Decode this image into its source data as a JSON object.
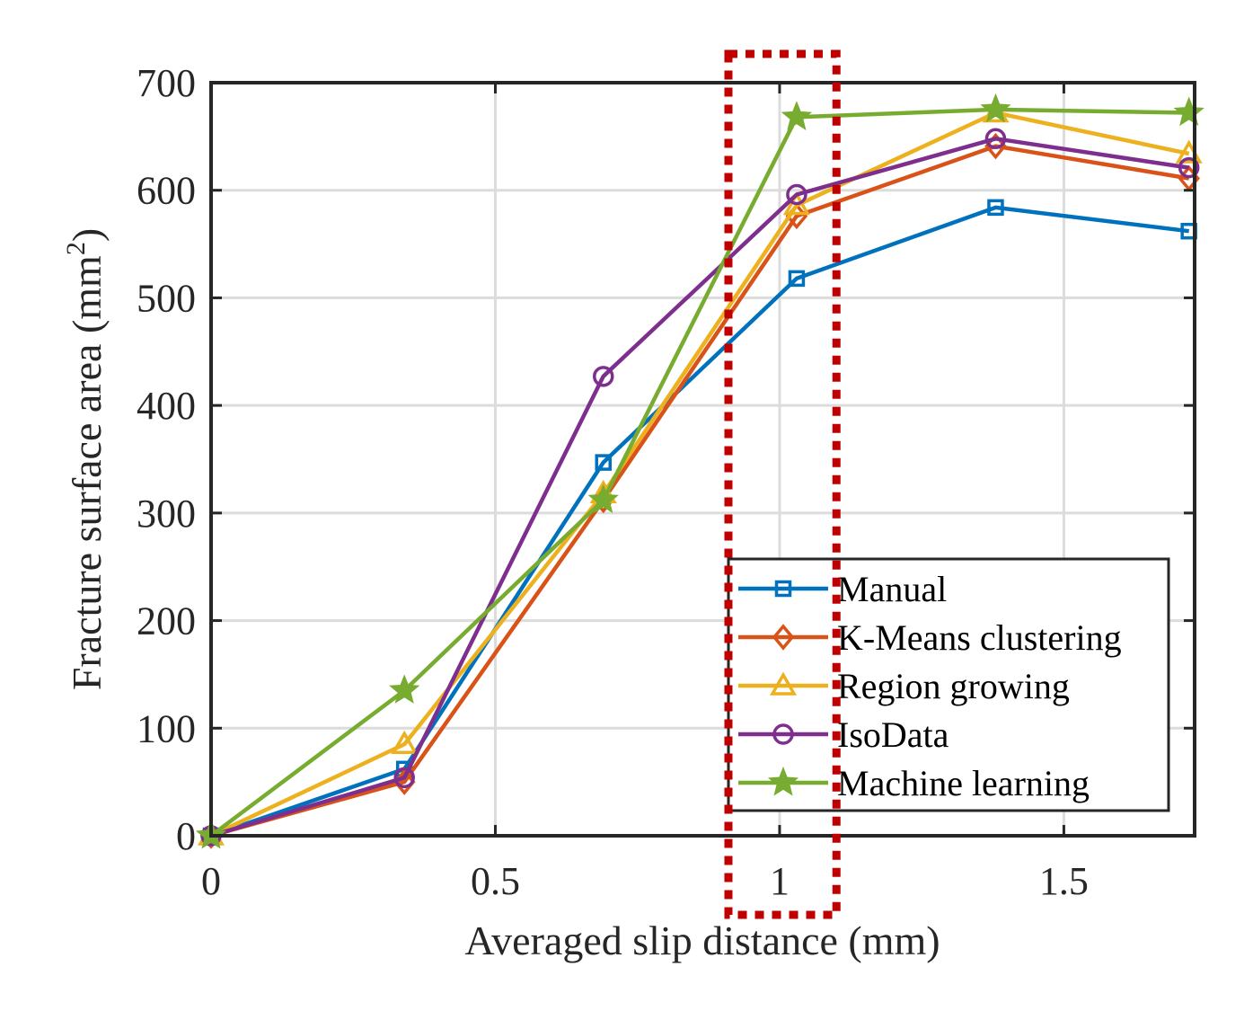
{
  "chart_data": {
    "type": "line",
    "xlabel": "Averaged slip distance (mm)",
    "ylabel": "Fracture surface area (mm",
    "ylabel_sup": "2",
    "ylabel_close": ")",
    "xlim": [
      0,
      1.73
    ],
    "ylim": [
      0,
      700
    ],
    "x_ticks": [
      0,
      0.5,
      1,
      1.5
    ],
    "x_tick_labels": [
      "0",
      "0.5",
      "1",
      "1.5"
    ],
    "y_ticks": [
      0,
      100,
      200,
      300,
      400,
      500,
      600,
      700
    ],
    "y_tick_labels": [
      "0",
      "100",
      "200",
      "300",
      "400",
      "500",
      "600",
      "700"
    ],
    "grid": true,
    "legend_position": "bottom-right",
    "x": [
      0,
      0.34,
      0.69,
      1.03,
      1.38,
      1.72
    ],
    "series": [
      {
        "name": "Manual",
        "values": [
          0,
          62,
          347,
          518,
          584,
          562
        ],
        "color": "#0072BD",
        "marker": "square"
      },
      {
        "name": "K-Means clustering",
        "values": [
          0,
          50,
          312,
          576,
          641,
          611
        ],
        "color": "#D95319",
        "marker": "diamond"
      },
      {
        "name": "Region growing",
        "values": [
          0,
          85,
          318,
          586,
          672,
          634
        ],
        "color": "#EDB120",
        "marker": "triangle"
      },
      {
        "name": "IsoData",
        "values": [
          0,
          54,
          427,
          596,
          648,
          621
        ],
        "color": "#7E2F8E",
        "marker": "circle"
      },
      {
        "name": "Machine learning",
        "values": [
          0,
          135,
          312,
          668,
          675,
          672
        ],
        "color": "#77AC30",
        "marker": "star"
      }
    ],
    "highlight_box": {
      "x_range": [
        0.91,
        1.1
      ],
      "color": "#C00000",
      "style": "dotted"
    }
  }
}
